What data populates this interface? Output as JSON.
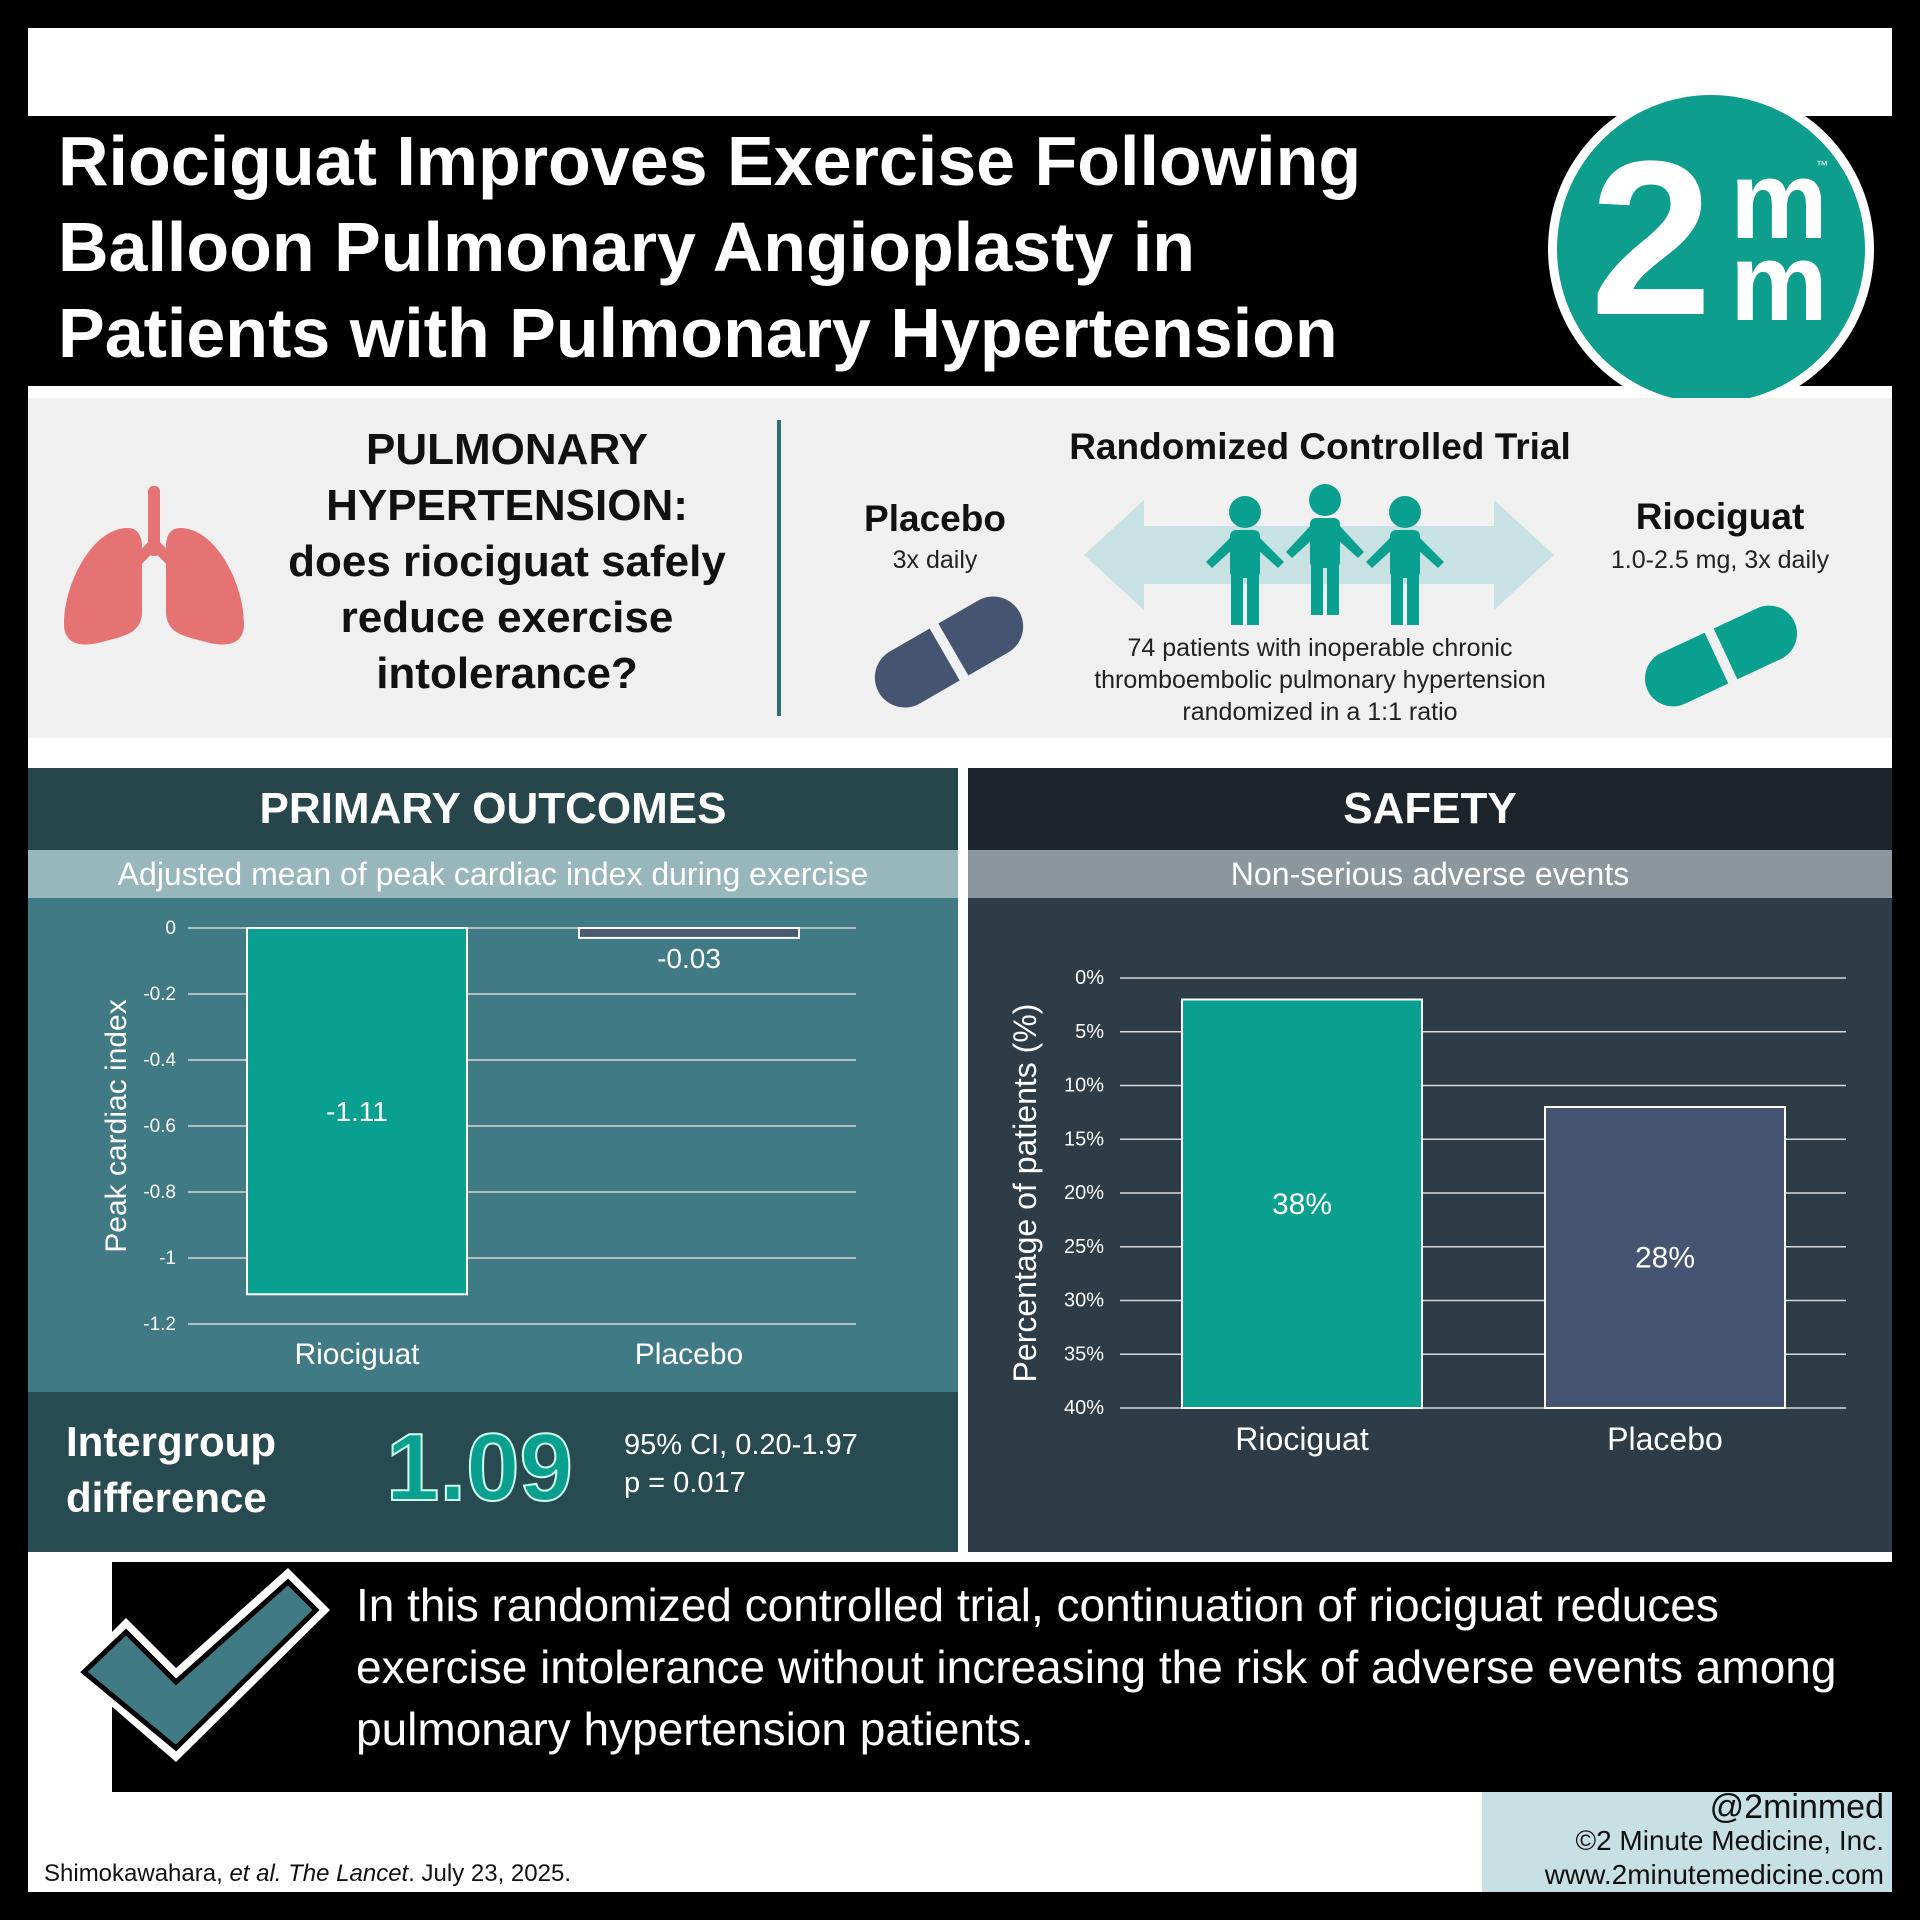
{
  "title": "Riociguat Improves Exercise Following Balloon Pulmonary Angioplasty in Patients with Pulmonary Hypertension",
  "logo": {
    "main": "2",
    "sup": "m",
    "sub": "m",
    "tm": "™"
  },
  "question": "PULMONARY HYPERTENSION: does riociguat safely reduce exercise intolerance?",
  "trial": {
    "title": "Randomized Controlled Trial",
    "placebo": {
      "name": "Placebo",
      "dose": "3x daily"
    },
    "riociguat": {
      "name": "Riociguat",
      "dose": "1.0-2.5 mg, 3x daily"
    },
    "description": "74 patients with inoperable chronic thromboembolic pulmonary hypertension randomized in a 1:1 ratio"
  },
  "primary": {
    "title": "PRIMARY OUTCOMES",
    "subtitle": "Adjusted mean of peak cardiac index during exercise",
    "intergroup_label_1": "Intergroup",
    "intergroup_label_2": "difference",
    "intergroup_value": "1.09",
    "ci": "95% CI, 0.20-1.97",
    "p": "p = 0.017"
  },
  "safety": {
    "title": "SAFETY",
    "subtitle": "Non-serious adverse events"
  },
  "chart_data": [
    {
      "type": "bar",
      "categories": [
        "Riociguat",
        "Placebo"
      ],
      "values": [
        -1.11,
        -0.03
      ],
      "data_labels": [
        "-1.11",
        "-0.03"
      ],
      "ylabel": "Peak cardiac index",
      "ylim": [
        -1.2,
        0
      ],
      "yticks": [
        "0",
        "-0.2",
        "-0.4",
        "-0.6",
        "-0.8",
        "-1",
        "-1.2"
      ],
      "colors": [
        "#0aa090",
        "#4a5a70"
      ],
      "grid": true
    },
    {
      "type": "bar",
      "categories": [
        "Riociguat",
        "Placebo"
      ],
      "values": [
        38,
        28
      ],
      "data_labels": [
        "38%",
        "28%"
      ],
      "ylabel": "Percentage of patients (%)",
      "ylim": [
        0,
        40
      ],
      "yticks": [
        "0%",
        "5%",
        "10%",
        "15%",
        "20%",
        "25%",
        "30%",
        "35%",
        "40%"
      ],
      "colors": [
        "#0aa090",
        "#455470"
      ],
      "grid": true
    }
  ],
  "conclusion": "In this randomized controlled trial, continuation of riociguat reduces exercise intolerance without increasing the risk of adverse events among pulmonary hypertension patients.",
  "citation": {
    "authors": "Shimokawahara, ",
    "etal": "et al. The Lancet",
    "date": ". July 23, 2025."
  },
  "brand": {
    "handle": "@2minmed",
    "copyright": "©2 Minute Medicine, Inc.",
    "url": "www.2minutemedicine.com"
  },
  "colors": {
    "teal": "#0aa090",
    "slate": "#4a5a70",
    "dark": "#1d242b"
  }
}
